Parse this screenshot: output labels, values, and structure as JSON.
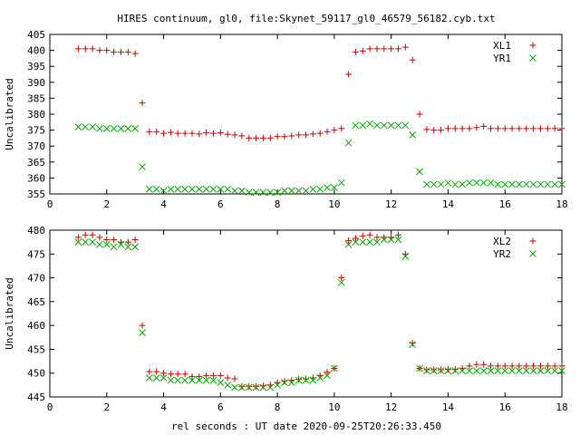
{
  "title": "HIRES continuum, gl0, file:Skynet_59117_gl0_46579_56182.cyb.txt",
  "xlabel": "rel seconds : UT date 2020-09-25T20:26:33.450",
  "chart_data": [
    {
      "type": "scatter",
      "ylabel": "Uncalibrated",
      "xlim": [
        0,
        18
      ],
      "ylim": [
        355,
        405
      ],
      "xticks": [
        0,
        2,
        4,
        6,
        8,
        10,
        12,
        14,
        16,
        18
      ],
      "yticks": [
        355,
        360,
        365,
        370,
        375,
        380,
        385,
        390,
        395,
        400,
        405
      ],
      "grid": false,
      "legend": "top-right",
      "x": [
        1.0,
        1.25,
        1.5,
        1.75,
        2.0,
        2.25,
        2.5,
        2.75,
        3.0,
        3.25,
        3.5,
        3.75,
        4.0,
        4.25,
        4.5,
        4.75,
        5.0,
        5.25,
        5.5,
        5.75,
        6.0,
        6.25,
        6.5,
        6.75,
        7.0,
        7.25,
        7.5,
        7.75,
        8.0,
        8.25,
        8.5,
        8.75,
        9.0,
        9.25,
        9.5,
        9.75,
        10.0,
        10.25,
        10.5,
        10.75,
        11.0,
        11.25,
        11.5,
        11.75,
        12.0,
        12.25,
        12.5,
        12.75,
        13.0,
        13.25,
        13.5,
        13.75,
        14.0,
        14.25,
        14.5,
        14.75,
        15.0,
        15.25,
        15.5,
        15.75,
        16.0,
        16.25,
        16.5,
        16.75,
        17.0,
        17.25,
        17.5,
        17.75,
        18.0
      ],
      "series": [
        {
          "name": "XL1",
          "color": "#cc0000",
          "marker": "plus",
          "values": [
            400.5,
            400.5,
            400.5,
            400,
            400,
            399.5,
            399.5,
            399.5,
            399,
            383.5,
            374.5,
            374.5,
            374,
            374.3,
            374,
            374,
            374,
            373.8,
            374.2,
            374,
            374.2,
            373.7,
            373.5,
            373.2,
            372.5,
            372.5,
            372.5,
            372.5,
            373,
            373,
            373.2,
            373.5,
            373.5,
            373.8,
            374,
            374.5,
            375,
            375.5,
            392.5,
            399.5,
            399.8,
            400.5,
            400.5,
            400.5,
            400.5,
            400.5,
            401,
            397,
            380,
            375.2,
            375,
            375,
            375.5,
            375.5,
            375.5,
            375.5,
            375.8,
            376.2,
            375.5,
            375.5,
            375.5,
            375.5,
            375.5,
            375.5,
            375.5,
            375.5,
            375.5,
            375.5,
            375.5
          ]
        },
        {
          "name": "YR1",
          "color": "#00aa00",
          "marker": "cross",
          "values": [
            376,
            376,
            376,
            375.5,
            375.5,
            375.5,
            375.5,
            375.5,
            375.5,
            363.5,
            356.5,
            356.5,
            356,
            356.5,
            356.5,
            356.5,
            356.5,
            356.5,
            356.5,
            356.5,
            356.5,
            356.5,
            356,
            356,
            355.5,
            355.5,
            355.5,
            355.5,
            355.5,
            356,
            356,
            356,
            356,
            356.5,
            356.5,
            357,
            357,
            358.5,
            371,
            376.5,
            376.5,
            377,
            376.5,
            376.5,
            376.5,
            376.5,
            376.5,
            373.5,
            362,
            358,
            358,
            358,
            358.5,
            358,
            358,
            358.5,
            358.5,
            358.5,
            358.5,
            358,
            358,
            358,
            358,
            358,
            358,
            358,
            358,
            358,
            358
          ]
        }
      ]
    },
    {
      "type": "scatter",
      "ylabel": "Uncalibrated",
      "xlim": [
        0,
        18
      ],
      "ylim": [
        445,
        480
      ],
      "xticks": [
        0,
        2,
        4,
        6,
        8,
        10,
        12,
        14,
        16,
        18
      ],
      "yticks": [
        445,
        450,
        455,
        460,
        465,
        470,
        475,
        480
      ],
      "grid": false,
      "legend": "top-right",
      "x": [
        1.0,
        1.25,
        1.5,
        1.75,
        2.0,
        2.25,
        2.5,
        2.75,
        3.0,
        3.25,
        3.5,
        3.75,
        4.0,
        4.25,
        4.5,
        4.75,
        5.0,
        5.25,
        5.5,
        5.75,
        6.0,
        6.25,
        6.5,
        6.75,
        7.0,
        7.25,
        7.5,
        7.75,
        8.0,
        8.25,
        8.5,
        8.75,
        9.0,
        9.25,
        9.5,
        9.75,
        10.0,
        10.25,
        10.5,
        10.75,
        11.0,
        11.25,
        11.5,
        11.75,
        12.0,
        12.25,
        12.5,
        12.75,
        13.0,
        13.25,
        13.5,
        13.75,
        14.0,
        14.25,
        14.5,
        14.75,
        15.0,
        15.25,
        15.5,
        15.75,
        16.0,
        16.25,
        16.5,
        16.75,
        17.0,
        17.25,
        17.5,
        17.75,
        18.0
      ],
      "series": [
        {
          "name": "XL2",
          "color": "#cc0000",
          "marker": "plus",
          "values": [
            478.5,
            479,
            479,
            478.5,
            478,
            478,
            477.5,
            477.5,
            478,
            460,
            450.3,
            450.3,
            450,
            449.8,
            449.8,
            449.8,
            449.3,
            449.3,
            449.5,
            449.5,
            449.5,
            449,
            448.8,
            447.2,
            447.2,
            447.2,
            447.3,
            447.5,
            448,
            448.3,
            448.5,
            448.7,
            448.8,
            449,
            449.5,
            450.2,
            451,
            470,
            477.8,
            478.3,
            478.8,
            479,
            478.5,
            478.5,
            478.5,
            479,
            475,
            456.3,
            451,
            450.7,
            450.7,
            450.7,
            450.8,
            450.8,
            451,
            451.5,
            451.8,
            451.8,
            451.5,
            451.5,
            451.5,
            451.5,
            451.5,
            451.5,
            451.5,
            451.5,
            451.5,
            451.5,
            451.5
          ]
        },
        {
          "name": "YR2",
          "color": "#00aa00",
          "marker": "cross",
          "values": [
            477.5,
            477.5,
            477.5,
            477,
            477,
            476.5,
            477,
            476.5,
            476.5,
            458.5,
            449,
            449,
            449,
            448.5,
            448.5,
            448.5,
            448.5,
            448.5,
            448.5,
            448.5,
            448,
            447.5,
            447,
            447,
            447,
            447,
            447,
            447,
            447.5,
            448,
            448,
            448.5,
            448.5,
            448.5,
            449,
            449.5,
            451,
            469,
            477,
            477.5,
            477.5,
            477.5,
            477.5,
            478,
            478,
            478,
            474.5,
            456,
            451,
            450.5,
            450.5,
            450.5,
            450.5,
            450.5,
            450.5,
            450.5,
            450.5,
            450.5,
            450.5,
            450.5,
            450.5,
            450.5,
            450.5,
            450.5,
            450.5,
            450.5,
            450.5,
            450.5,
            450.5
          ]
        }
      ]
    }
  ]
}
